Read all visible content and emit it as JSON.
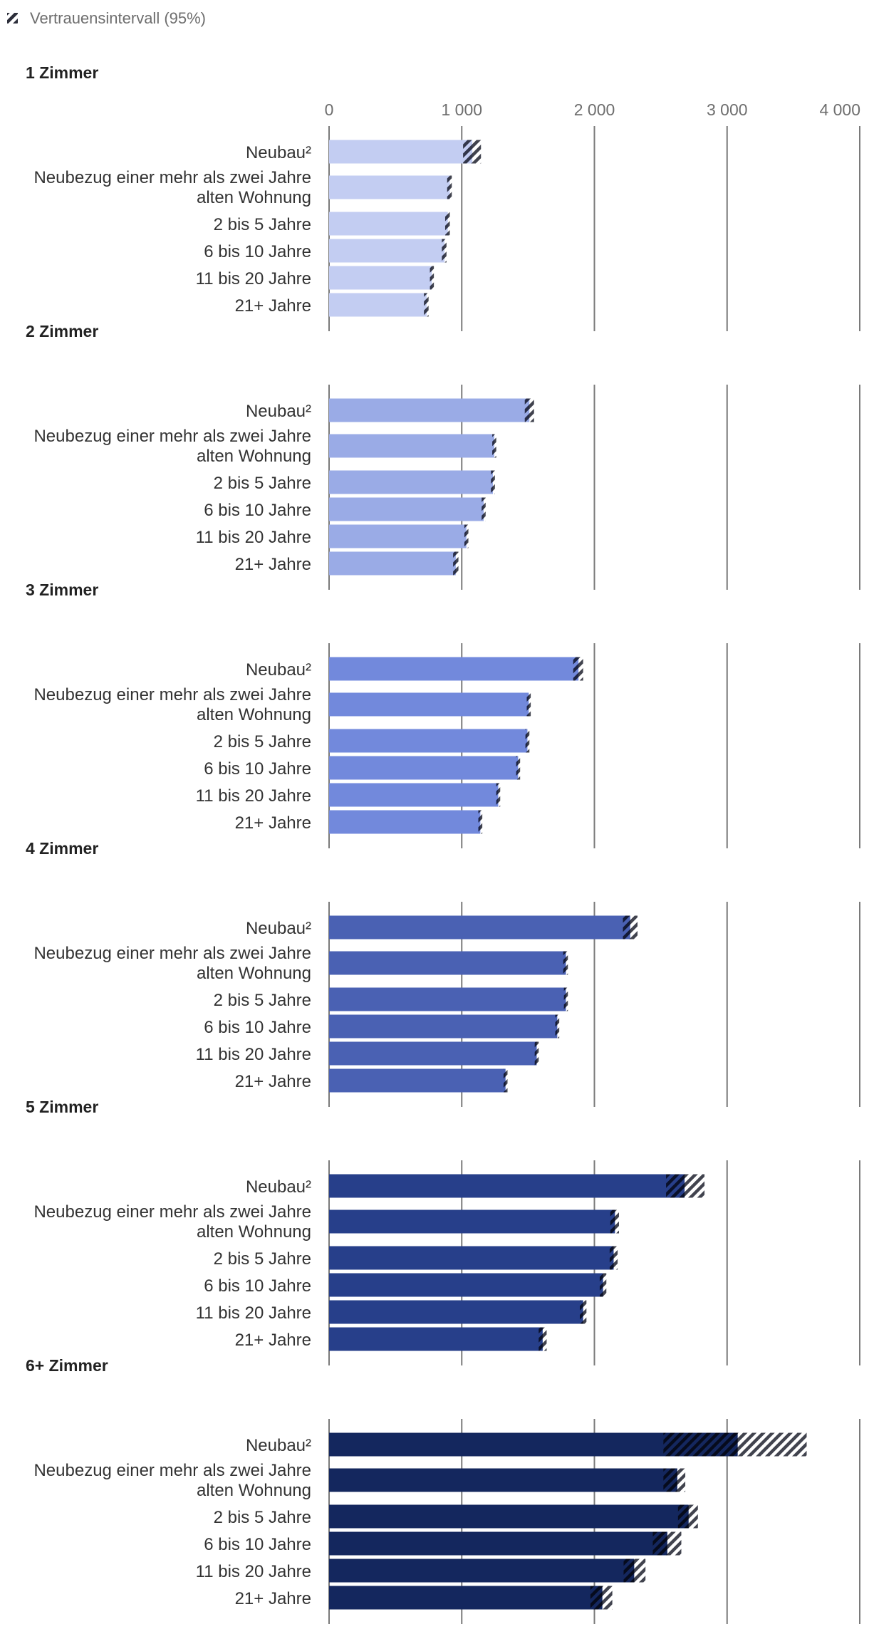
{
  "chart_data": {
    "type": "bar",
    "orientation": "horizontal",
    "legend": {
      "label": "Vertrauensintervall (95%)",
      "position": "top-left"
    },
    "x_ticks": [
      0,
      1000,
      2000,
      3000,
      4000
    ],
    "x_tick_labels": [
      "0",
      "1 000",
      "2 000",
      "3 000",
      "4 000"
    ],
    "xlim": [
      0,
      4000
    ],
    "categories": [
      [
        "Neubau²"
      ],
      [
        "Neubezug einer mehr als zwei Jahre",
        "alten Wohnung"
      ],
      [
        "2 bis 5 Jahre"
      ],
      [
        "6 bis 10 Jahre"
      ],
      [
        "11 bis 20 Jahre"
      ],
      [
        "21+ Jahre"
      ]
    ],
    "panels": [
      {
        "title": "1 Zimmer",
        "color": "#c3cdf2",
        "values": [
          1080,
          910,
          895,
          870,
          775,
          735
        ],
        "ci": [
          [
            1010,
            1145
          ],
          [
            890,
            925
          ],
          [
            875,
            910
          ],
          [
            850,
            885
          ],
          [
            760,
            790
          ],
          [
            715,
            750
          ]
        ]
      },
      {
        "title": "2 Zimmer",
        "color": "#9aabe6",
        "values": [
          1510,
          1245,
          1235,
          1165,
          1035,
          955
        ],
        "ci": [
          [
            1475,
            1545
          ],
          [
            1230,
            1260
          ],
          [
            1220,
            1250
          ],
          [
            1150,
            1180
          ],
          [
            1020,
            1050
          ],
          [
            935,
            975
          ]
        ]
      },
      {
        "title": "3 Zimmer",
        "color": "#7289dc",
        "values": [
          1880,
          1505,
          1495,
          1425,
          1275,
          1140
        ],
        "ci": [
          [
            1840,
            1915
          ],
          [
            1490,
            1520
          ],
          [
            1480,
            1510
          ],
          [
            1410,
            1440
          ],
          [
            1260,
            1290
          ],
          [
            1125,
            1155
          ]
        ]
      },
      {
        "title": "4 Zimmer",
        "color": "#4a61b3",
        "values": [
          2270,
          1785,
          1785,
          1720,
          1565,
          1330
        ],
        "ci": [
          [
            2215,
            2325
          ],
          [
            1765,
            1800
          ],
          [
            1770,
            1800
          ],
          [
            1705,
            1735
          ],
          [
            1550,
            1580
          ],
          [
            1315,
            1345
          ]
        ]
      },
      {
        "title": "5 Zimmer",
        "color": "#273f8a",
        "values": [
          2680,
          2155,
          2145,
          2065,
          1915,
          1610
        ],
        "ci": [
          [
            2540,
            2830
          ],
          [
            2120,
            2185
          ],
          [
            2115,
            2175
          ],
          [
            2040,
            2090
          ],
          [
            1890,
            1940
          ],
          [
            1580,
            1640
          ]
        ]
      },
      {
        "title": "6+ Zimmer",
        "color": "#14275e",
        "values": [
          3080,
          2625,
          2710,
          2550,
          2300,
          2060
        ],
        "ci": [
          [
            2520,
            3600
          ],
          [
            2520,
            2685
          ],
          [
            2630,
            2780
          ],
          [
            2440,
            2655
          ],
          [
            2220,
            2385
          ],
          [
            1970,
            2135
          ]
        ]
      }
    ]
  }
}
